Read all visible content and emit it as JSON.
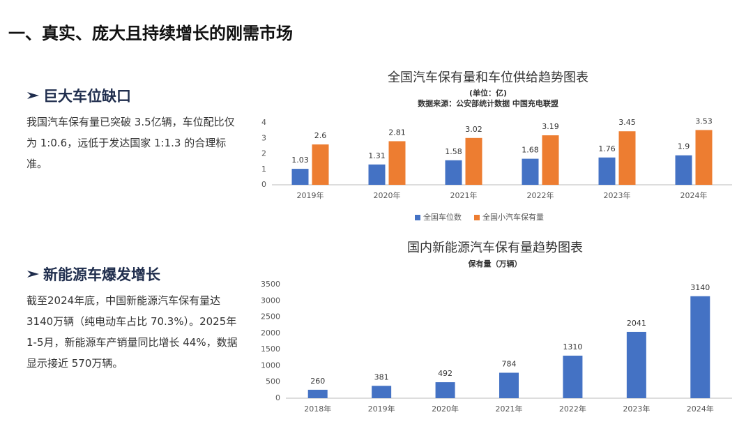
{
  "header": {
    "title": "一、真实、庞大且持续增长的刚需市场"
  },
  "sections": [
    {
      "heading": "巨大车位缺口",
      "text": "我国汽车保有量已突破 3.5亿辆，车位配比仅为 1:0.6，远低于发达国家 1:1.3 的合理标准。"
    },
    {
      "heading": "新能源车爆发增长",
      "text": "截至2024年底，中国新能源汽车保有量达 3140万辆（纯电动车占比 70.3%）。2025年1-5月，新能源车产销量同比增长 44%，数据显示接近 570万辆。"
    }
  ],
  "chart_data": [
    {
      "type": "bar",
      "title": "全国汽车保有量和车位供给趋势图表",
      "subtitle": "(单位：亿)",
      "source": "数据来源：公安部统计数据 中国充电联盟",
      "categories": [
        "2019年",
        "2020年",
        "2021年",
        "2022年",
        "2023年",
        "2024年"
      ],
      "series": [
        {
          "name": "全国车位数",
          "color": "#4472c4",
          "values": [
            1.03,
            1.31,
            1.58,
            1.68,
            1.76,
            1.9
          ]
        },
        {
          "name": "全国小汽车保有量",
          "color": "#ed7d31",
          "values": [
            2.6,
            2.81,
            3.02,
            3.19,
            3.45,
            3.53
          ]
        }
      ],
      "ylim": [
        0,
        4
      ],
      "yticks": [
        0,
        1,
        2,
        3,
        4
      ],
      "grid": false,
      "legend": "bottom"
    },
    {
      "type": "bar",
      "title": "国内新能源汽车保有量趋势图表",
      "subtitle": "保有量（万辆）",
      "categories": [
        "2018年",
        "2019年",
        "2020年",
        "2021年",
        "2022年",
        "2023年",
        "2024年"
      ],
      "series": [
        {
          "color": "#4472c4",
          "values": [
            260,
            381,
            492,
            784,
            1310,
            2041,
            3140
          ]
        }
      ],
      "ylim": [
        0,
        3500
      ],
      "yticks": [
        0,
        500,
        1000,
        1500,
        2000,
        2500,
        3000,
        3500
      ],
      "grid": false
    }
  ]
}
